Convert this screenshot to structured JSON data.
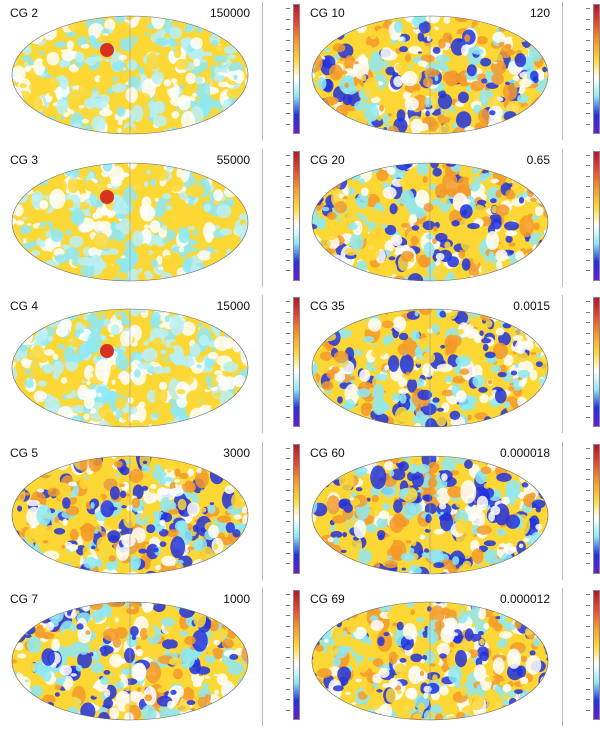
{
  "colors": {
    "high": "#d7301f",
    "mid_high": "#fdd835",
    "mid_low": "#8ee9f5",
    "low": "#2233dd",
    "bg": "#ffffff"
  },
  "panels": [
    {
      "label": "CG 2",
      "value": "150000",
      "hot_spot": true
    },
    {
      "label": "CG 10",
      "value": "120",
      "hot_spot": false
    },
    {
      "label": "CG 3",
      "value": "55000",
      "hot_spot": true
    },
    {
      "label": "CG 20",
      "value": "0.65",
      "hot_spot": false
    },
    {
      "label": "CG 4",
      "value": "15000",
      "hot_spot": true
    },
    {
      "label": "CG 35",
      "value": "0.0015",
      "hot_spot": false
    },
    {
      "label": "CG 5",
      "value": "3000",
      "hot_spot": false
    },
    {
      "label": "CG 60",
      "value": "0.000018",
      "hot_spot": false
    },
    {
      "label": "CG 7",
      "value": "1000",
      "hot_spot": false
    },
    {
      "label": "CG 69",
      "value": "0.000012",
      "hot_spot": false
    }
  ]
}
